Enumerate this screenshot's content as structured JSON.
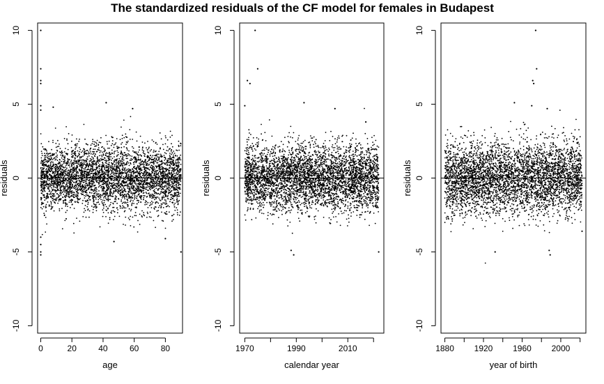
{
  "title": "The standardized residuals of the CF model for females in Budapest",
  "colors": {
    "points": "#000000",
    "axes": "#000000",
    "background": "#ffffff"
  },
  "chart_data": [
    {
      "type": "scatter",
      "xlabel": "age",
      "ylabel": "residuals",
      "xlim": [
        -2,
        91
      ],
      "ylim": [
        -10.5,
        10.5
      ],
      "xticks": [
        0,
        20,
        40,
        60,
        80
      ],
      "xtick_labels": [
        "0",
        "20",
        "40",
        "60",
        "80"
      ],
      "yticks": [
        -10,
        -5,
        0,
        5,
        10
      ],
      "ytick_labels": [
        "-10",
        "-5",
        "0",
        "5",
        "10"
      ],
      "reference_line_y": 0,
      "grid": false,
      "band": {
        "x_min": 0,
        "x_max": 90,
        "mean": 0,
        "spread": 1.1,
        "count": 4200
      },
      "outliers": [
        [
          0,
          10.0
        ],
        [
          0,
          7.4
        ],
        [
          0,
          6.6
        ],
        [
          0,
          6.4
        ],
        [
          0,
          4.9
        ],
        [
          0,
          4.6
        ],
        [
          0,
          -4.0
        ],
        [
          0,
          -5.0
        ],
        [
          0,
          -5.2
        ],
        [
          0,
          -4.5
        ],
        [
          8,
          4.8
        ],
        [
          47,
          -4.3
        ],
        [
          90,
          -5.0
        ],
        [
          42,
          5.1
        ],
        [
          59,
          4.7
        ],
        [
          80,
          -4.1
        ]
      ]
    },
    {
      "type": "scatter",
      "xlabel": "calendar year",
      "ylabel": "residuals",
      "xlim": [
        1968,
        2024
      ],
      "ylim": [
        -10.5,
        10.5
      ],
      "xticks": [
        1970,
        1990,
        2010
      ],
      "minor_xticks": [
        1980,
        2000,
        2020
      ],
      "xtick_labels": [
        "1970",
        "1990",
        "2010"
      ],
      "yticks": [
        -10,
        -5,
        0,
        5,
        10
      ],
      "ytick_labels": [
        "-10",
        "-5",
        "0",
        "5",
        "10"
      ],
      "reference_line_y": 0,
      "grid": false,
      "band": {
        "x_min": 1970,
        "x_max": 2022,
        "mean": 0,
        "spread": 1.1,
        "count": 4200
      },
      "outliers": [
        [
          1974,
          10.0
        ],
        [
          1975,
          7.4
        ],
        [
          1971,
          6.6
        ],
        [
          1972,
          6.4
        ],
        [
          1970,
          4.9
        ],
        [
          1993,
          5.1
        ],
        [
          2005,
          4.7
        ],
        [
          1988,
          -4.9
        ],
        [
          1989,
          -5.2
        ],
        [
          2022,
          -5.0
        ],
        [
          2017,
          3.8
        ]
      ]
    },
    {
      "type": "scatter",
      "xlabel": "year of birth",
      "ylabel": "residuals",
      "xlim": [
        1876,
        2026
      ],
      "ylim": [
        -10.5,
        10.5
      ],
      "xticks": [
        1880,
        1920,
        1960,
        2000
      ],
      "minor_xticks": [
        1900,
        1940,
        1980,
        2020
      ],
      "xtick_labels": [
        "1880",
        "1920",
        "1960",
        "2000"
      ],
      "yticks": [
        -10,
        -5,
        0,
        5,
        10
      ],
      "ytick_labels": [
        "-10",
        "-5",
        "0",
        "5",
        "10"
      ],
      "reference_line_y": 0,
      "grid": false,
      "band": {
        "x_min": 1880,
        "x_max": 2022,
        "mean": 0,
        "spread": 1.2,
        "count": 4200
      },
      "outliers": [
        [
          1974,
          10.0
        ],
        [
          1975,
          7.4
        ],
        [
          1971,
          6.6
        ],
        [
          1972,
          6.4
        ],
        [
          1970,
          4.9
        ],
        [
          1952,
          5.1
        ],
        [
          1986,
          4.7
        ],
        [
          1988,
          -4.9
        ],
        [
          1989,
          -5.2
        ],
        [
          1932,
          -5.0
        ],
        [
          2022,
          -3.6
        ]
      ]
    }
  ]
}
